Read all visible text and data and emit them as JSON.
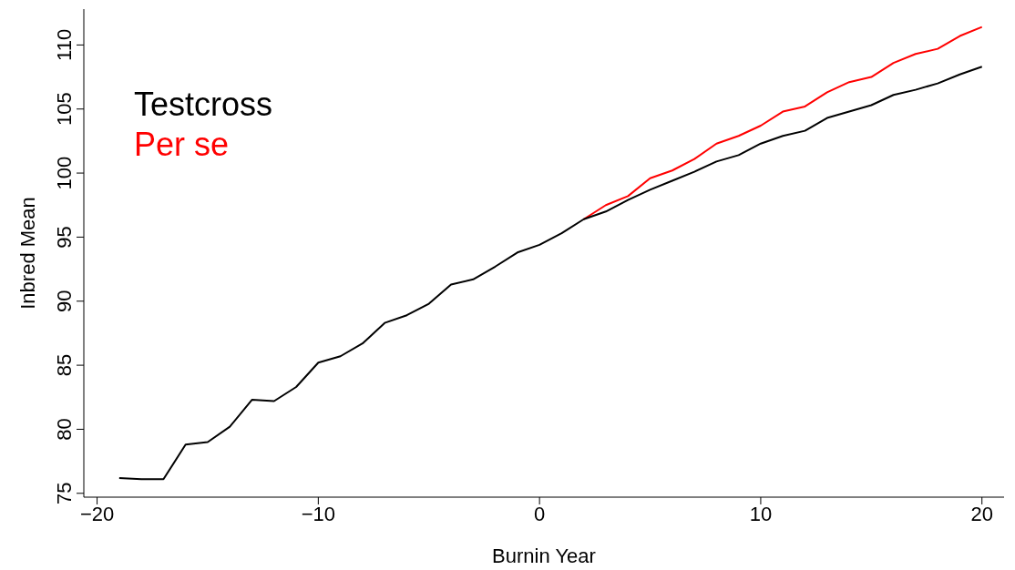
{
  "chart_data": {
    "type": "line",
    "xlabel": "Burnin Year",
    "ylabel": "Inbred Mean",
    "x": [
      -19,
      -18,
      -17,
      -16,
      -15,
      -14,
      -13,
      -12,
      -11,
      -10,
      -9,
      -8,
      -7,
      -6,
      -5,
      -4,
      -3,
      -2,
      -1,
      0,
      1,
      2,
      3,
      4,
      5,
      6,
      7,
      8,
      9,
      10,
      11,
      12,
      13,
      14,
      15,
      16,
      17,
      18,
      19,
      20
    ],
    "series": [
      {
        "name": "Testcross",
        "color": "#000000",
        "values": [
          76.2,
          76.1,
          76.1,
          78.8,
          79.0,
          80.2,
          82.3,
          82.2,
          83.3,
          85.2,
          85.7,
          86.7,
          88.3,
          88.9,
          89.8,
          91.3,
          91.7,
          92.7,
          93.8,
          94.4,
          95.3,
          96.4,
          97.0,
          97.9,
          98.7,
          99.4,
          100.1,
          100.9,
          101.4,
          102.3,
          102.9,
          103.3,
          104.3,
          104.8,
          105.3,
          106.1,
          106.5,
          107.0,
          107.7,
          108.3
        ]
      },
      {
        "name": "Per se",
        "color": "#ff0000",
        "values": [
          null,
          null,
          null,
          null,
          null,
          null,
          null,
          null,
          null,
          null,
          null,
          null,
          null,
          null,
          null,
          null,
          null,
          null,
          null,
          null,
          null,
          96.4,
          97.5,
          98.2,
          99.6,
          100.2,
          101.1,
          102.3,
          102.9,
          103.7,
          104.8,
          105.2,
          106.3,
          107.1,
          107.5,
          108.6,
          109.3,
          109.7,
          110.7,
          111.4
        ]
      }
    ],
    "xlim": [
      -20.6,
      21.0
    ],
    "xticks": [
      {
        "value": -20,
        "label": "−20"
      },
      {
        "value": -10,
        "label": "−10"
      },
      0,
      10,
      20
    ],
    "ylim": [
      74.7,
      112.8
    ],
    "yticks": [
      75,
      80,
      85,
      90,
      95,
      100,
      105,
      110
    ],
    "grid": false,
    "legend": "top left",
    "marker": "none",
    "line_style": "solid"
  }
}
